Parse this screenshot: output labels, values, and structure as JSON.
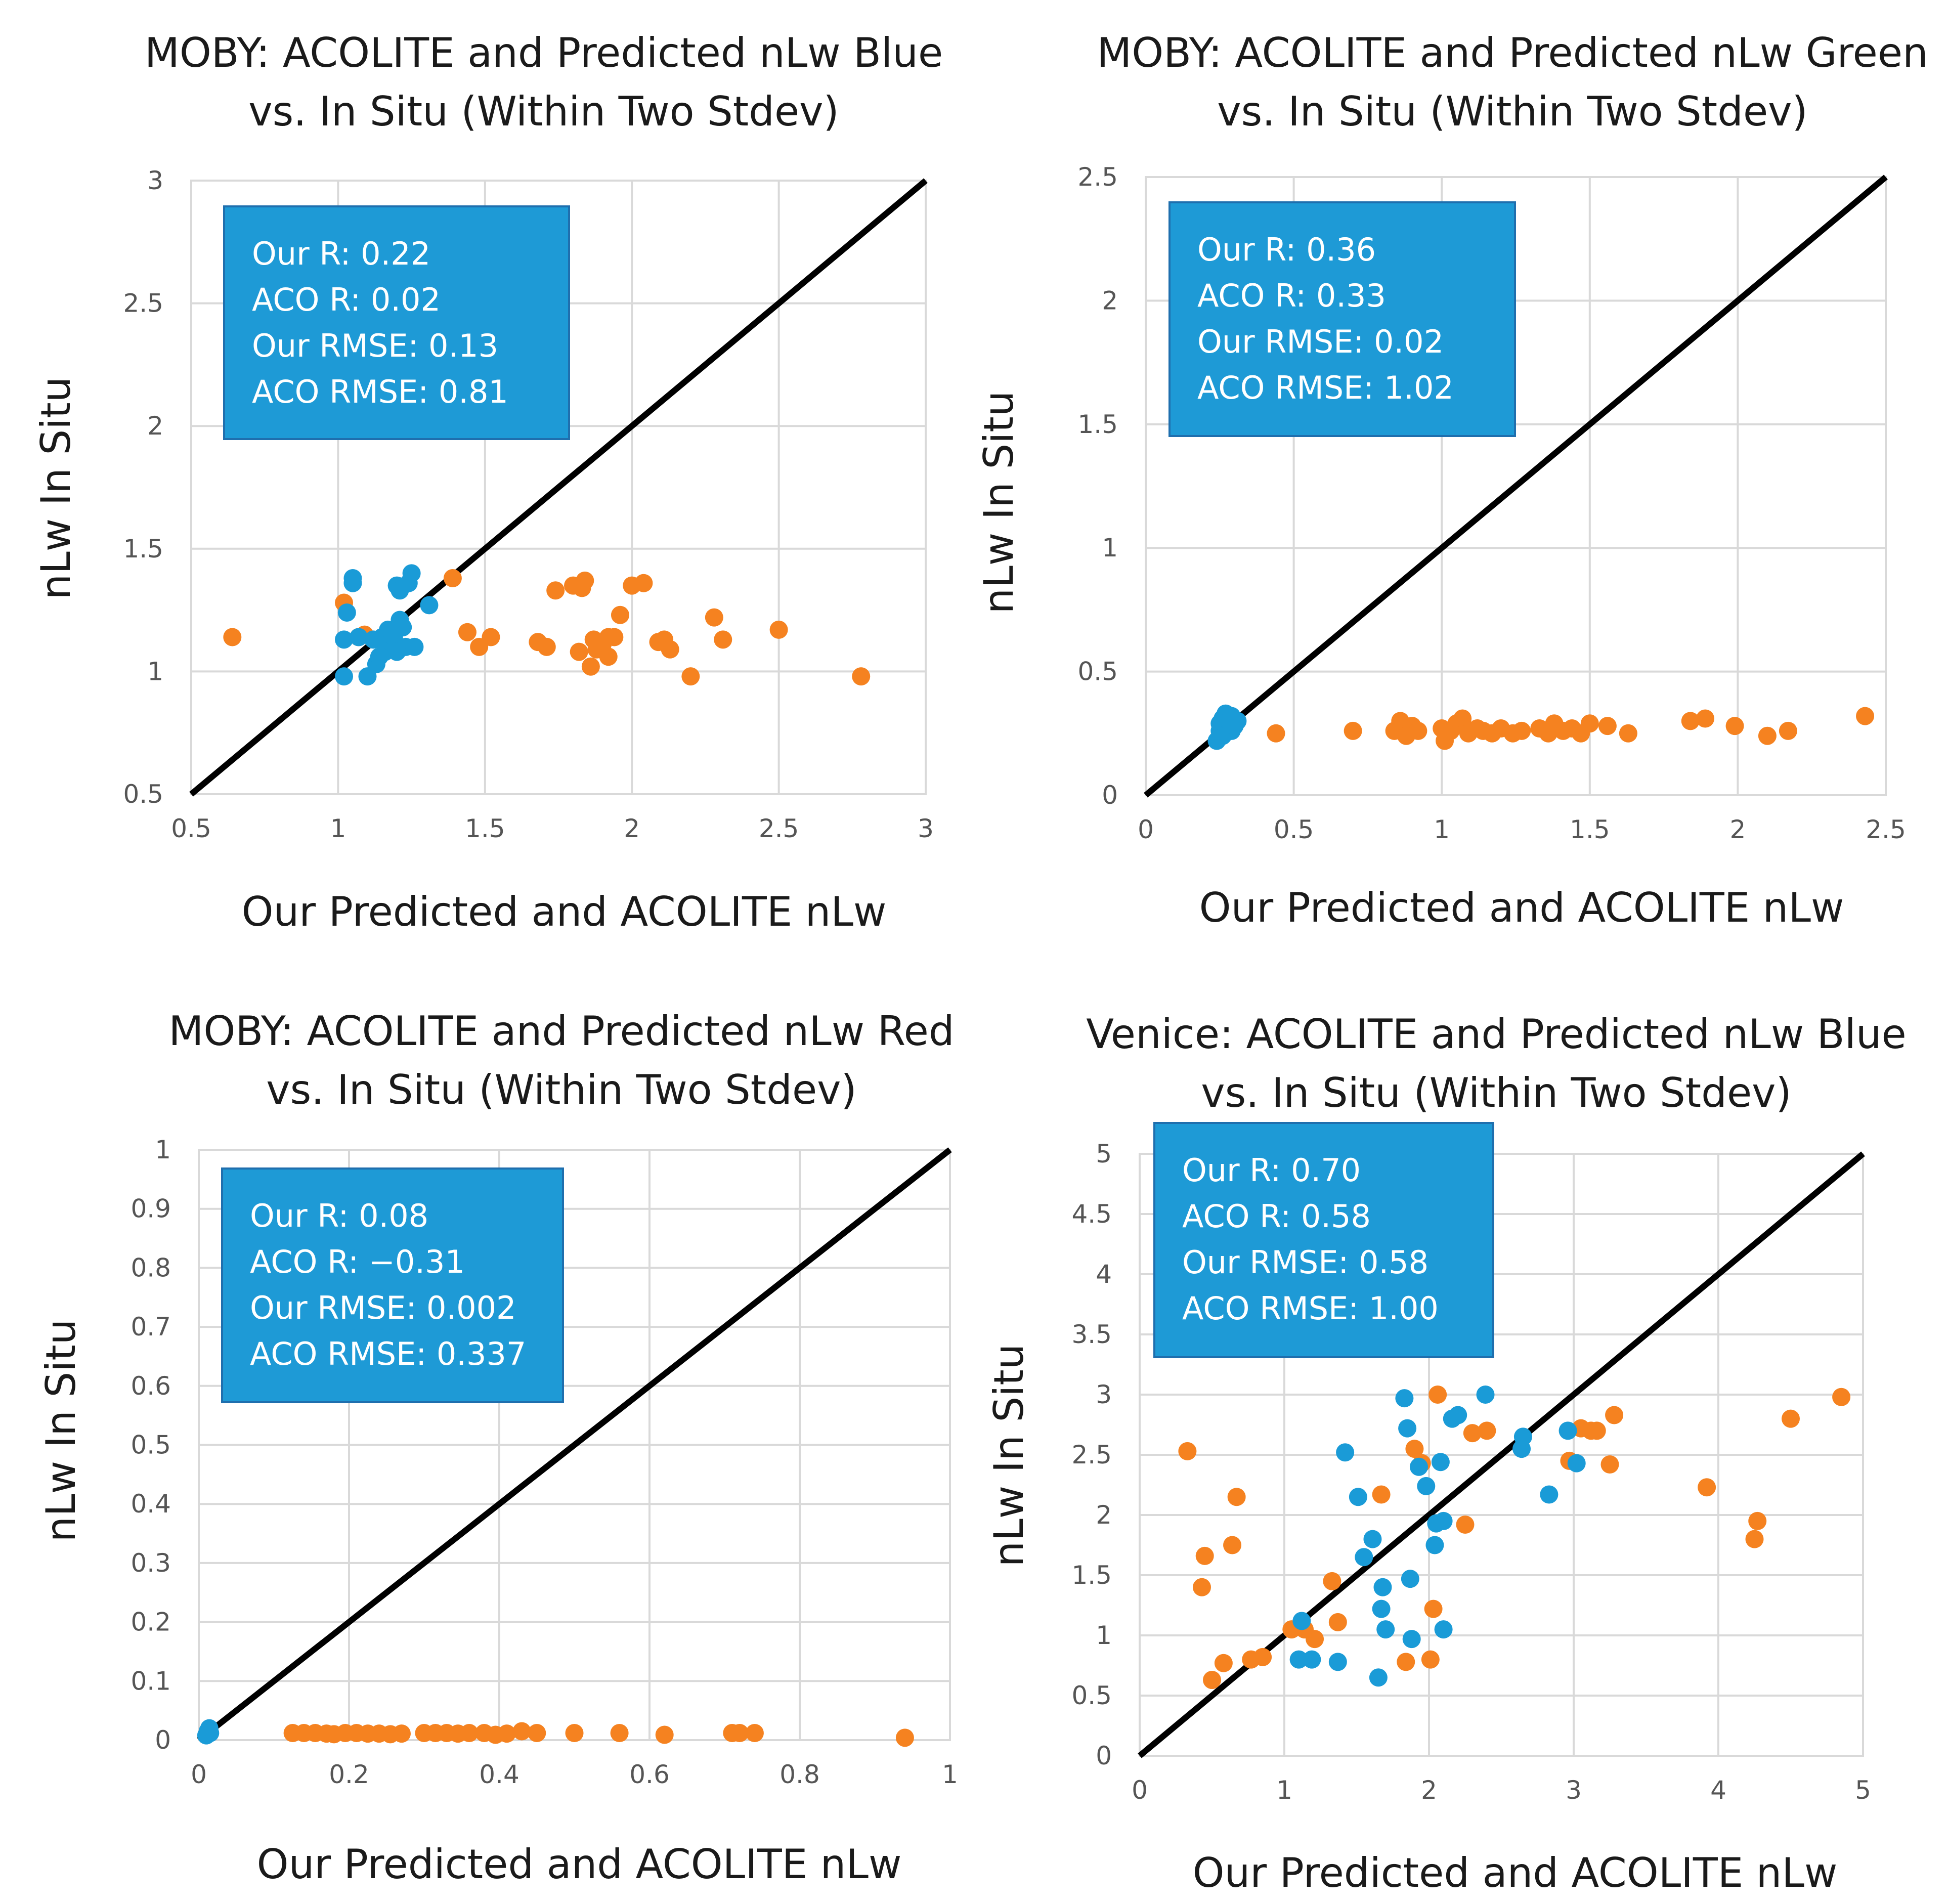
{
  "colors": {
    "ours": "#1a9bd7",
    "acolite": "#f58220",
    "box": "#1e9ad6",
    "line": "#000000"
  },
  "chart_data": [
    {
      "type": "scatter",
      "title_lines": [
        "MOBY: ACOLITE and Predicted nLw Blue",
        "vs. In Situ (Within Two Stdev)"
      ],
      "xlabel": "Our Predicted and ACOLITE nLw",
      "ylabel": "nLw In Situ",
      "xlim": [
        0.5,
        3
      ],
      "ylim": [
        0.5,
        3
      ],
      "xticks": [
        0.5,
        1,
        1.5,
        2,
        2.5,
        3
      ],
      "yticks": [
        0.5,
        1,
        1.5,
        2,
        2.5,
        3
      ],
      "xtick_labels": [
        "0.5",
        "1",
        "1.5",
        "2",
        "2.5",
        "3"
      ],
      "ytick_labels": [
        "0.5",
        "1",
        "1.5",
        "2",
        "2.5",
        "3"
      ],
      "reference_line": [
        [
          0.5,
          0.5
        ],
        [
          3,
          3
        ]
      ],
      "stats": [
        "Our R: 0.22",
        "ACO R: 0.02",
        "Our RMSE: 0.13",
        "ACO RMSE: 0.81"
      ],
      "series": [
        {
          "name": "Our Predicted",
          "color": "#1a9bd7",
          "points": [
            [
              1.02,
              0.98
            ],
            [
              1.02,
              1.13
            ],
            [
              1.03,
              1.24
            ],
            [
              1.05,
              1.36
            ],
            [
              1.05,
              1.38
            ],
            [
              1.07,
              1.14
            ],
            [
              1.1,
              0.98
            ],
            [
              1.12,
              1.13
            ],
            [
              1.13,
              1.03
            ],
            [
              1.14,
              1.06
            ],
            [
              1.15,
              1.14
            ],
            [
              1.16,
              1.08
            ],
            [
              1.17,
              1.17
            ],
            [
              1.18,
              1.12
            ],
            [
              1.19,
              1.14
            ],
            [
              1.2,
              1.35
            ],
            [
              1.2,
              1.08
            ],
            [
              1.21,
              1.33
            ],
            [
              1.21,
              1.21
            ],
            [
              1.22,
              1.18
            ],
            [
              1.23,
              1.1
            ],
            [
              1.24,
              1.36
            ],
            [
              1.25,
              1.4
            ],
            [
              1.26,
              1.1
            ],
            [
              1.31,
              1.27
            ]
          ]
        },
        {
          "name": "ACOLITE",
          "color": "#f58220",
          "points": [
            [
              0.64,
              1.14
            ],
            [
              1.02,
              1.28
            ],
            [
              1.07,
              1.14
            ],
            [
              1.09,
              1.15
            ],
            [
              1.39,
              1.38
            ],
            [
              1.44,
              1.16
            ],
            [
              1.48,
              1.1
            ],
            [
              1.52,
              1.14
            ],
            [
              1.68,
              1.12
            ],
            [
              1.71,
              1.1
            ],
            [
              1.74,
              1.33
            ],
            [
              1.8,
              1.35
            ],
            [
              1.82,
              1.08
            ],
            [
              1.83,
              1.34
            ],
            [
              1.84,
              1.37
            ],
            [
              1.86,
              1.02
            ],
            [
              1.87,
              1.13
            ],
            [
              1.88,
              1.09
            ],
            [
              1.9,
              1.11
            ],
            [
              1.92,
              1.14
            ],
            [
              1.92,
              1.06
            ],
            [
              1.94,
              1.14
            ],
            [
              1.96,
              1.23
            ],
            [
              2.0,
              1.35
            ],
            [
              2.04,
              1.36
            ],
            [
              2.09,
              1.12
            ],
            [
              2.11,
              1.13
            ],
            [
              2.13,
              1.09
            ],
            [
              2.2,
              0.98
            ],
            [
              2.28,
              1.22
            ],
            [
              2.31,
              1.13
            ],
            [
              2.5,
              1.17
            ],
            [
              2.78,
              0.98
            ]
          ]
        }
      ]
    },
    {
      "type": "scatter",
      "title_lines": [
        "MOBY: ACOLITE and Predicted nLw Green",
        "vs. In Situ (Within Two Stdev)"
      ],
      "xlabel": "Our Predicted and ACOLITE nLw",
      "ylabel": "nLw In Situ",
      "xlim": [
        0,
        2.5
      ],
      "ylim": [
        0,
        2.5
      ],
      "xticks": [
        0,
        0.5,
        1,
        1.5,
        2,
        2.5
      ],
      "yticks": [
        0,
        0.5,
        1,
        1.5,
        2,
        2.5
      ],
      "xtick_labels": [
        "0",
        "0.5",
        "1",
        "1.5",
        "2",
        "2.5"
      ],
      "ytick_labels": [
        "0",
        "0.5",
        "1",
        "1.5",
        "2",
        "2.5"
      ],
      "reference_line": [
        [
          0,
          0
        ],
        [
          2.5,
          2.5
        ]
      ],
      "stats": [
        "Our R: 0.36",
        "ACO R: 0.33",
        "Our RMSE: 0.02",
        "ACO RMSE: 1.02"
      ],
      "series": [
        {
          "name": "Our Predicted",
          "color": "#1a9bd7",
          "points": [
            [
              0.24,
              0.22
            ],
            [
              0.25,
              0.26
            ],
            [
              0.25,
              0.29
            ],
            [
              0.26,
              0.31
            ],
            [
              0.26,
              0.24
            ],
            [
              0.27,
              0.28
            ],
            [
              0.27,
              0.33
            ],
            [
              0.28,
              0.3
            ],
            [
              0.29,
              0.26
            ],
            [
              0.29,
              0.32
            ],
            [
              0.3,
              0.28
            ],
            [
              0.31,
              0.3
            ]
          ]
        },
        {
          "name": "ACOLITE",
          "color": "#f58220",
          "points": [
            [
              0.44,
              0.25
            ],
            [
              0.7,
              0.26
            ],
            [
              0.84,
              0.26
            ],
            [
              0.86,
              0.3
            ],
            [
              0.88,
              0.24
            ],
            [
              0.9,
              0.28
            ],
            [
              0.92,
              0.26
            ],
            [
              1.0,
              0.27
            ],
            [
              1.01,
              0.22
            ],
            [
              1.03,
              0.26
            ],
            [
              1.05,
              0.29
            ],
            [
              1.07,
              0.31
            ],
            [
              1.09,
              0.25
            ],
            [
              1.12,
              0.27
            ],
            [
              1.14,
              0.26
            ],
            [
              1.17,
              0.25
            ],
            [
              1.2,
              0.27
            ],
            [
              1.24,
              0.25
            ],
            [
              1.27,
              0.26
            ],
            [
              1.33,
              0.27
            ],
            [
              1.36,
              0.25
            ],
            [
              1.38,
              0.29
            ],
            [
              1.41,
              0.26
            ],
            [
              1.44,
              0.27
            ],
            [
              1.47,
              0.25
            ],
            [
              1.5,
              0.29
            ],
            [
              1.56,
              0.28
            ],
            [
              1.63,
              0.25
            ],
            [
              1.84,
              0.3
            ],
            [
              1.89,
              0.31
            ],
            [
              1.99,
              0.28
            ],
            [
              2.1,
              0.24
            ],
            [
              2.17,
              0.26
            ],
            [
              2.43,
              0.32
            ]
          ]
        }
      ]
    },
    {
      "type": "scatter",
      "title_lines": [
        "MOBY: ACOLITE and Predicted nLw Red",
        "vs. In Situ (Within Two Stdev)"
      ],
      "xlabel": "Our Predicted and ACOLITE nLw",
      "ylabel": "nLw In Situ",
      "xlim": [
        0,
        1
      ],
      "ylim": [
        0,
        1
      ],
      "xticks": [
        0,
        0.2,
        0.4,
        0.6,
        0.8,
        1
      ],
      "yticks": [
        0,
        0.1,
        0.2,
        0.3,
        0.4,
        0.5,
        0.6,
        0.7,
        0.8,
        0.9,
        1
      ],
      "xtick_labels": [
        "0",
        "0.2",
        "0.4",
        "0.6",
        "0.8",
        "1"
      ],
      "ytick_labels": [
        "0",
        "0.1",
        "0.2",
        "0.3",
        "0.4",
        "0.5",
        "0.6",
        "0.7",
        "0.8",
        "0.9",
        "1"
      ],
      "reference_line": [
        [
          0,
          0
        ],
        [
          1,
          1
        ]
      ],
      "stats": [
        "Our R: 0.08",
        "ACO R: −0.31",
        "Our RMSE: 0.002",
        "ACO RMSE: 0.337"
      ],
      "series": [
        {
          "name": "Our Predicted",
          "color": "#1a9bd7",
          "points": [
            [
              0.01,
              0.008
            ],
            [
              0.012,
              0.015
            ],
            [
              0.014,
              0.02
            ],
            [
              0.015,
              0.012
            ]
          ]
        },
        {
          "name": "ACOLITE",
          "color": "#f58220",
          "points": [
            [
              0.125,
              0.012
            ],
            [
              0.14,
              0.012
            ],
            [
              0.155,
              0.012
            ],
            [
              0.17,
              0.011
            ],
            [
              0.18,
              0.01
            ],
            [
              0.195,
              0.012
            ],
            [
              0.21,
              0.012
            ],
            [
              0.225,
              0.011
            ],
            [
              0.24,
              0.011
            ],
            [
              0.255,
              0.01
            ],
            [
              0.27,
              0.011
            ],
            [
              0.3,
              0.012
            ],
            [
              0.315,
              0.012
            ],
            [
              0.33,
              0.012
            ],
            [
              0.345,
              0.011
            ],
            [
              0.36,
              0.012
            ],
            [
              0.38,
              0.012
            ],
            [
              0.395,
              0.009
            ],
            [
              0.41,
              0.011
            ],
            [
              0.43,
              0.015
            ],
            [
              0.45,
              0.012
            ],
            [
              0.5,
              0.012
            ],
            [
              0.56,
              0.012
            ],
            [
              0.62,
              0.009
            ],
            [
              0.71,
              0.012
            ],
            [
              0.72,
              0.012
            ],
            [
              0.74,
              0.012
            ],
            [
              0.94,
              0.004
            ]
          ]
        }
      ]
    },
    {
      "type": "scatter",
      "title_lines": [
        "Venice: ACOLITE and Predicted nLw Blue",
        "vs. In Situ (Within Two Stdev)"
      ],
      "xlabel": "Our Predicted and ACOLITE nLw",
      "ylabel": "nLw In Situ",
      "xlim": [
        0,
        5
      ],
      "ylim": [
        0,
        5
      ],
      "xticks": [
        0,
        1,
        2,
        3,
        4,
        5
      ],
      "yticks": [
        0,
        0.5,
        1,
        1.5,
        2,
        2.5,
        3,
        3.5,
        4,
        4.5,
        5
      ],
      "xtick_labels": [
        "0",
        "1",
        "2",
        "3",
        "4",
        "5"
      ],
      "ytick_labels": [
        "0",
        "0.5",
        "1",
        "1.5",
        "2",
        "2.5",
        "3",
        "3.5",
        "4",
        "4.5",
        "5"
      ],
      "reference_line": [
        [
          0,
          0
        ],
        [
          5,
          5
        ]
      ],
      "stats": [
        "Our R: 0.70",
        "ACO R: 0.58",
        "Our RMSE: 0.58",
        "ACO RMSE: 1.00"
      ],
      "series": [
        {
          "name": "Our Predicted",
          "color": "#1a9bd7",
          "points": [
            [
              1.1,
              0.8
            ],
            [
              1.12,
              1.12
            ],
            [
              1.19,
              0.8
            ],
            [
              1.37,
              0.78
            ],
            [
              1.42,
              2.52
            ],
            [
              1.51,
              2.15
            ],
            [
              1.55,
              1.65
            ],
            [
              1.61,
              1.8
            ],
            [
              1.65,
              0.65
            ],
            [
              1.67,
              1.22
            ],
            [
              1.68,
              1.4
            ],
            [
              1.7,
              1.05
            ],
            [
              1.83,
              2.97
            ],
            [
              1.85,
              2.72
            ],
            [
              1.87,
              1.47
            ],
            [
              1.88,
              0.97
            ],
            [
              1.93,
              2.4
            ],
            [
              1.98,
              2.24
            ],
            [
              2.04,
              1.75
            ],
            [
              2.05,
              1.93
            ],
            [
              2.08,
              2.44
            ],
            [
              2.1,
              1.95
            ],
            [
              2.1,
              1.05
            ],
            [
              2.16,
              2.8
            ],
            [
              2.2,
              2.83
            ],
            [
              2.39,
              3.0
            ],
            [
              2.64,
              2.55
            ],
            [
              2.65,
              2.65
            ],
            [
              2.83,
              2.17
            ],
            [
              2.96,
              2.7
            ],
            [
              3.02,
              2.43
            ]
          ]
        },
        {
          "name": "ACOLITE",
          "color": "#f58220",
          "points": [
            [
              0.33,
              2.53
            ],
            [
              0.43,
              1.4
            ],
            [
              0.45,
              1.66
            ],
            [
              0.5,
              0.63
            ],
            [
              0.58,
              0.77
            ],
            [
              0.64,
              1.75
            ],
            [
              0.67,
              2.15
            ],
            [
              0.77,
              0.8
            ],
            [
              0.85,
              0.82
            ],
            [
              1.05,
              1.05
            ],
            [
              1.14,
              1.05
            ],
            [
              1.21,
              0.97
            ],
            [
              1.33,
              1.45
            ],
            [
              1.37,
              1.11
            ],
            [
              1.67,
              2.17
            ],
            [
              1.84,
              0.78
            ],
            [
              1.9,
              2.55
            ],
            [
              1.95,
              2.43
            ],
            [
              2.01,
              0.8
            ],
            [
              2.03,
              1.22
            ],
            [
              2.06,
              3.0
            ],
            [
              2.25,
              1.92
            ],
            [
              2.3,
              2.68
            ],
            [
              2.4,
              2.7
            ],
            [
              2.97,
              2.45
            ],
            [
              3.05,
              2.72
            ],
            [
              3.12,
              2.7
            ],
            [
              3.16,
              2.7
            ],
            [
              3.25,
              2.42
            ],
            [
              3.28,
              2.83
            ],
            [
              3.92,
              2.23
            ],
            [
              4.25,
              1.8
            ],
            [
              4.27,
              1.95
            ],
            [
              4.5,
              2.8
            ],
            [
              4.85,
              2.98
            ]
          ]
        }
      ]
    }
  ]
}
